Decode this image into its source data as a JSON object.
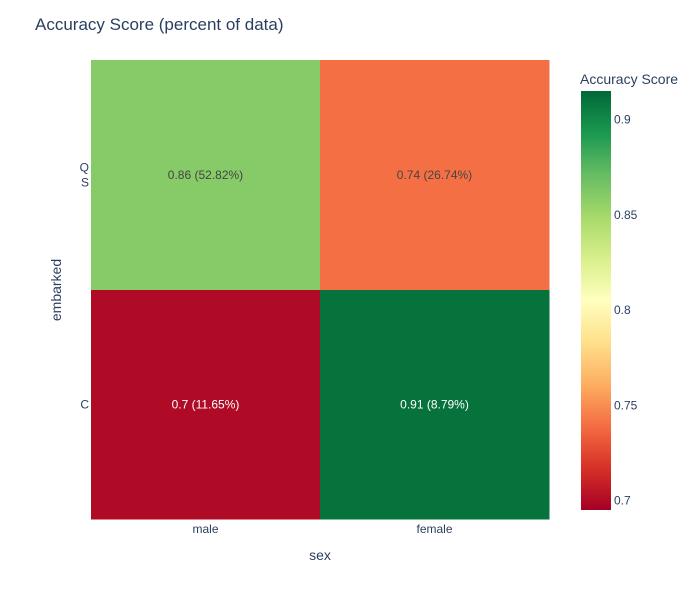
{
  "chart_data": {
    "type": "heatmap",
    "title": "Accuracy Score (percent of data)",
    "xlabel": "sex",
    "ylabel": "embarked",
    "x_categories": [
      "male",
      "female"
    ],
    "y_categories": [
      [
        "C"
      ],
      [
        "Q",
        "S"
      ]
    ],
    "z": [
      [
        0.7,
        0.91
      ],
      [
        0.86,
        0.74
      ]
    ],
    "cell_text": [
      [
        "0.7 (11.65%)",
        "0.91 (8.79%)"
      ],
      [
        "0.86 (52.82%)",
        "0.74 (26.74%)"
      ]
    ],
    "colorscale": "RdYlGn",
    "zmin": 0.695,
    "zmax": 0.915,
    "colorbar": {
      "title": "Accuracy Score",
      "ticks": [
        "0.7",
        "0.75",
        "0.8",
        "0.85",
        "0.9"
      ]
    }
  }
}
